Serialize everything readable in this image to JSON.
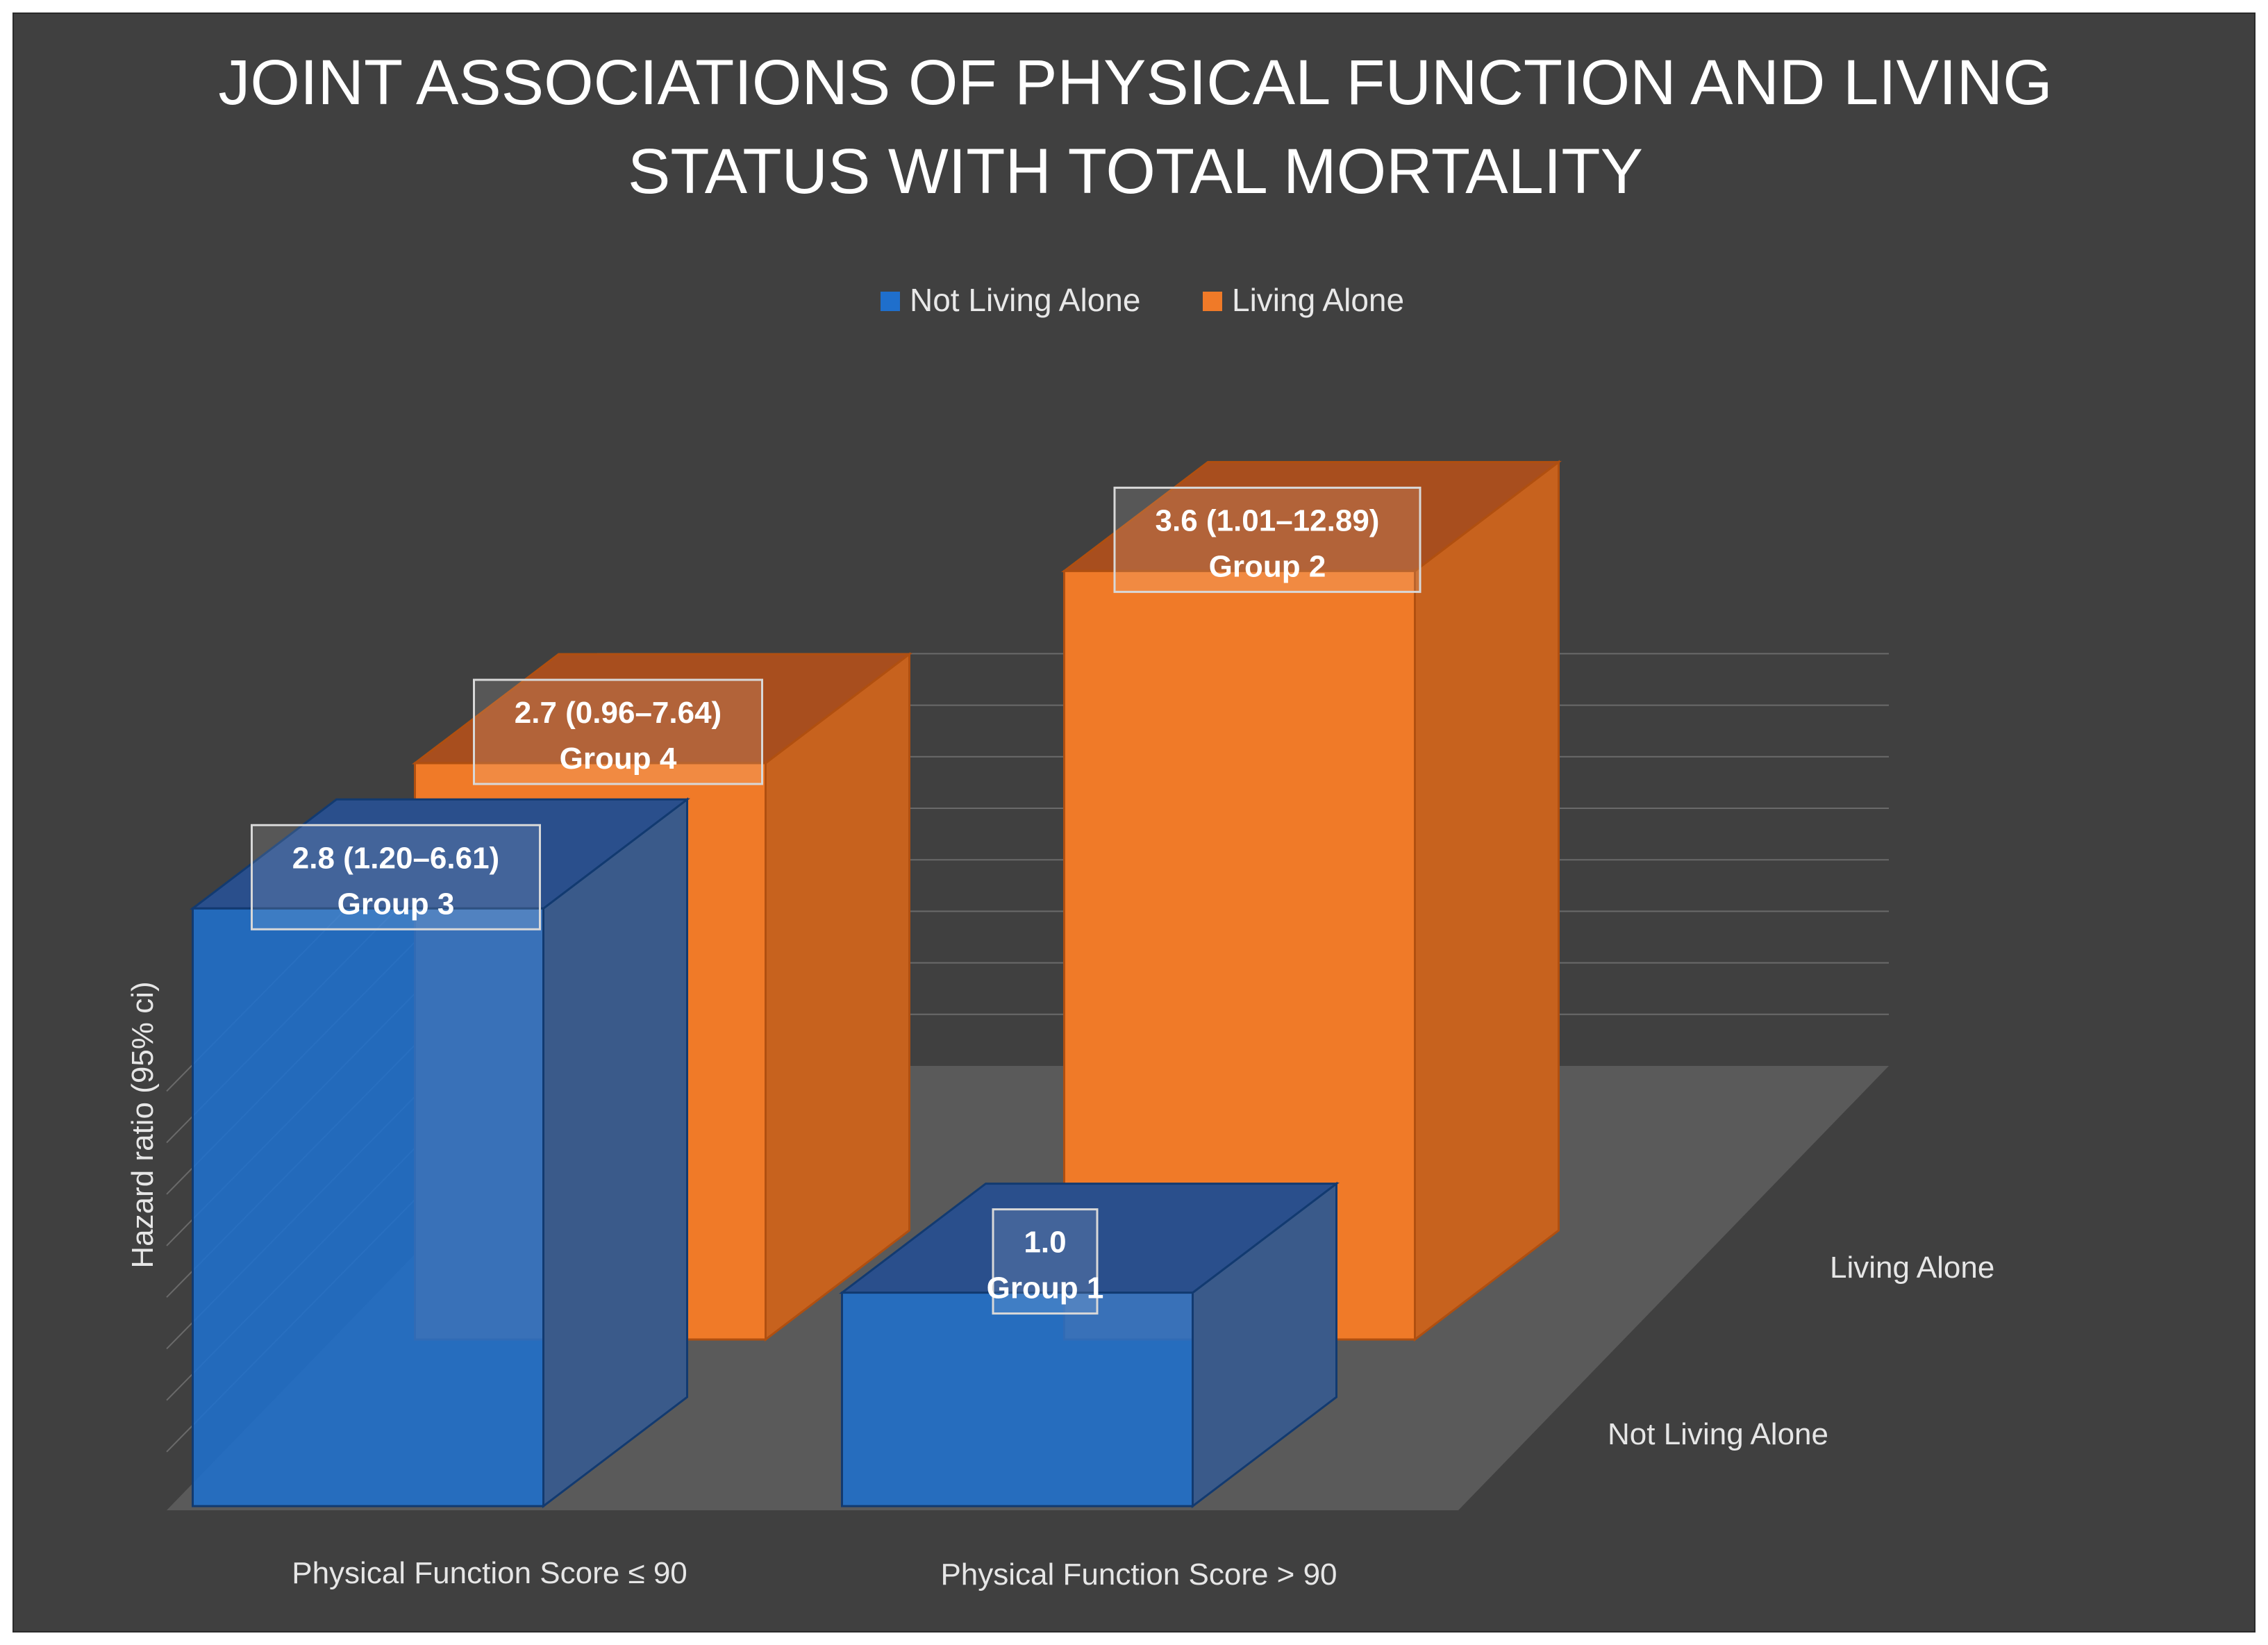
{
  "chart_data": {
    "type": "bar",
    "subtype": "3d-clustered-column",
    "title_lines": [
      "JOINT ASSOCIATIONS OF PHYSICAL FUNCTION AND LIVING",
      "STATUS WITH TOTAL MORTALITY"
    ],
    "ylabel": "Hazard ratio (95% ci)",
    "categories": [
      "Physical Function Score ≤ 90",
      "Physical Function Score > 90"
    ],
    "depth_categories": [
      "Not Living Alone",
      "Living Alone"
    ],
    "ylim": [
      0,
      4
    ],
    "grid": true,
    "legend_position": "top",
    "series": [
      {
        "name": "Not Living Alone",
        "color": "#1f6fcc",
        "values": [
          2.8,
          1.0
        ],
        "labels": [
          {
            "value_text": "2.8 (1.20–6.61)",
            "group": "Group 3"
          },
          {
            "value_text": "1.0",
            "group": "Group 1"
          }
        ]
      },
      {
        "name": "Living Alone",
        "color": "#f07a28",
        "values": [
          2.7,
          3.6
        ],
        "labels": [
          {
            "value_text": "2.7 (0.96–7.64)",
            "group": "Group 4"
          },
          {
            "value_text": "3.6 (1.01–12.89)",
            "group": "Group 2"
          }
        ]
      }
    ]
  }
}
